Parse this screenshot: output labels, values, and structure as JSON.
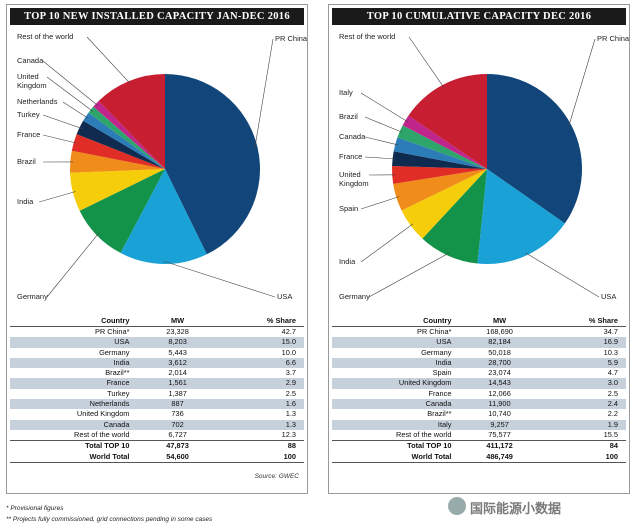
{
  "chart_data": [
    {
      "type": "pie",
      "title": "TOP 10 NEW INSTALLED CAPACITY JAN-DEC 2016",
      "categories": [
        "PR China",
        "USA",
        "Germany",
        "India",
        "Brazil",
        "France",
        "Turkey",
        "Netherlands",
        "United Kingdom",
        "Canada",
        "Rest of the world"
      ],
      "values": [
        42.7,
        15.0,
        10.0,
        6.6,
        3.7,
        2.9,
        2.5,
        1.6,
        1.3,
        1.3,
        12.3
      ],
      "colors": [
        "#12467a",
        "#1aa1d6",
        "#13924a",
        "#f5cd0a",
        "#f08c1a",
        "#e02d26",
        "#0f2b50",
        "#2c7cb8",
        "#2ea56a",
        "#c0258b",
        "#c81e32"
      ],
      "labels": {
        "PR China": "PR China",
        "USA": "USA",
        "Germany": "Germany",
        "India": "India",
        "Brazil": "Brazil",
        "France": "France",
        "Turkey": "Turkey",
        "Netherlands": "Netherlands",
        "United Kingdom": "United\nKingdom",
        "Canada": "Canada",
        "Rest of the world": "Rest of the world"
      },
      "table": {
        "headers": [
          "Country",
          "MW",
          "% Share"
        ],
        "rows": [
          [
            "PR China*",
            "23,328",
            "42.7"
          ],
          [
            "USA",
            "8,203",
            "15.0"
          ],
          [
            "Germany",
            "5,443",
            "10.0"
          ],
          [
            "India",
            "3,612",
            "6.6"
          ],
          [
            "Brazil**",
            "2,014",
            "3.7"
          ],
          [
            "France",
            "1,561",
            "2.9"
          ],
          [
            "Turkey",
            "1,387",
            "2.5"
          ],
          [
            "Netherlands",
            "887",
            "1.6"
          ],
          [
            "United Kingdom",
            "736",
            "1.3"
          ],
          [
            "Canada",
            "702",
            "1.3"
          ],
          [
            "Rest of the world",
            "6,727",
            "12.3"
          ]
        ],
        "total": [
          "Total TOP 10",
          "47,873",
          "88"
        ],
        "world": [
          "World Total",
          "54,600",
          "100"
        ]
      },
      "source": "Source: GWEC"
    },
    {
      "type": "pie",
      "title": "TOP 10 CUMULATIVE CAPACITY DEC 2016",
      "categories": [
        "PR China",
        "USA",
        "Germany",
        "India",
        "Spain",
        "United Kingdom",
        "France",
        "Canada",
        "Brazil",
        "Italy",
        "Rest of the world"
      ],
      "values": [
        34.7,
        16.9,
        10.3,
        5.9,
        4.7,
        3.0,
        2.5,
        2.4,
        2.2,
        1.9,
        15.5
      ],
      "colors": [
        "#12467a",
        "#1aa1d6",
        "#13924a",
        "#f5cd0a",
        "#f08c1a",
        "#e02d26",
        "#0f2b50",
        "#2c7cb8",
        "#2ea56a",
        "#c0258b",
        "#c81e32"
      ],
      "labels": {
        "PR China": "PR China",
        "USA": "USA",
        "Germany": "Germany",
        "India": "India",
        "Spain": "Spain",
        "United Kingdom": "United\nKingdom",
        "France": "France",
        "Canada": "Canada",
        "Brazil": "Brazil",
        "Italy": "Italy",
        "Rest of the world": "Rest of the world"
      },
      "table": {
        "headers": [
          "Country",
          "MW",
          "% Share"
        ],
        "rows": [
          [
            "PR China*",
            "168,690",
            "34.7"
          ],
          [
            "USA",
            "82,184",
            "16.9"
          ],
          [
            "Germany",
            "50,018",
            "10.3"
          ],
          [
            "India",
            "28,700",
            "5.9"
          ],
          [
            "Spain",
            "23,074",
            "4.7"
          ],
          [
            "United Kingdom",
            "14,543",
            "3.0"
          ],
          [
            "France",
            "12,066",
            "2.5"
          ],
          [
            "Canada",
            "11,900",
            "2.4"
          ],
          [
            "Brazil**",
            "10,740",
            "2.2"
          ],
          [
            "Italy",
            "9,257",
            "1.9"
          ],
          [
            "Rest of the world",
            "75,577",
            "15.5"
          ]
        ],
        "total": [
          "Total TOP 10",
          "411,172",
          "84"
        ],
        "world": [
          "World Total",
          "486,749",
          "100"
        ]
      }
    }
  ],
  "footnotes": [
    "* Provisional figures",
    "** Projects fully commissioned, grid connections pending in some cases"
  ],
  "watermark": "国际能源小数据"
}
